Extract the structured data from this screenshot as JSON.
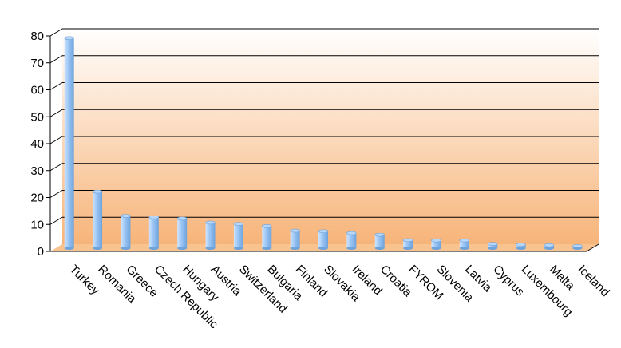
{
  "chart_data": {
    "type": "bar",
    "title": "",
    "xlabel": "",
    "ylabel": "",
    "ylim": [
      0,
      80
    ],
    "yticks": [
      "0",
      "10",
      "20",
      "30",
      "40",
      "50",
      "60",
      "70",
      "80"
    ],
    "grid": true,
    "legend": "none",
    "categories": [
      "Turkey",
      "Romania",
      "Greece",
      "Czech Republic",
      "Hungary",
      "Austria",
      "Switzerland",
      "Bulgaria",
      "Finland",
      "Slovakia",
      "Ireland",
      "Croatia",
      "FYROM",
      "Slovenia",
      "Latvia",
      "Cyprus",
      "Luxembourg",
      "Malta",
      "Iceland"
    ],
    "values": [
      78,
      21,
      12,
      11.5,
      11,
      9.5,
      9,
      8.2,
      6.5,
      6.3,
      5.6,
      5,
      3,
      2.9,
      2.9,
      1.6,
      1.3,
      1.1,
      0.8
    ],
    "colors": {
      "bar_light": "#cfe4ff",
      "bar_mid": "#99c4f3",
      "bar_dark": "#6ea3dc",
      "bar_top": "#b8d6f7",
      "wall_top": "#ffffff",
      "wall_bottom": "#f7b479",
      "floor": "#f9c38f",
      "grid": "#000000"
    }
  }
}
